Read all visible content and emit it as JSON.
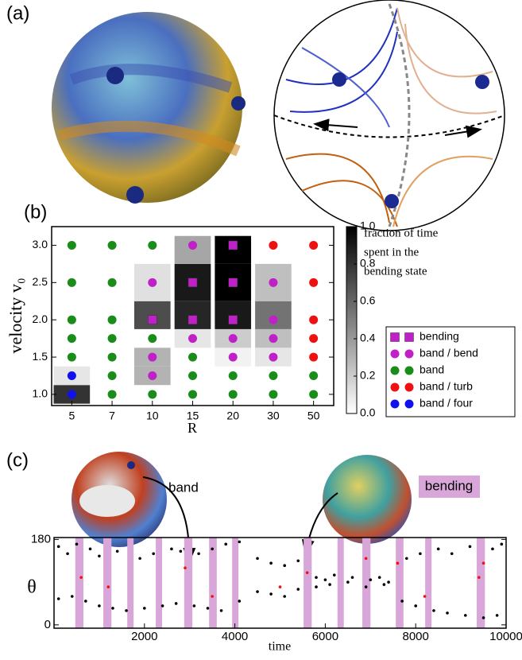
{
  "panel_labels": [
    "(a)",
    "(b)",
    "(c)"
  ],
  "chart_data": [
    {
      "type": "heatmap-scatter",
      "xlabel": "R",
      "ylabel": "velocity v₀",
      "categories": [
        5,
        7,
        10,
        15,
        20,
        30,
        50
      ],
      "ylim": [
        0.85,
        3.25
      ],
      "yticks": [
        {
          "value": 1,
          "label": "1.0"
        },
        1.5,
        {
          "value": 2,
          "label": "2.0"
        },
        2.5,
        {
          "value": 3,
          "label": "3.0"
        }
      ],
      "heatmap": {
        "x": [
          5,
          5,
          10,
          10,
          10,
          10,
          15,
          15,
          15,
          15,
          20,
          20,
          20,
          20,
          20,
          30,
          30,
          30,
          30
        ],
        "y": [
          1,
          1.25,
          1.25,
          1.5,
          2,
          2.5,
          1.75,
          2,
          2.5,
          3,
          1.5,
          1.75,
          2,
          2.5,
          3,
          1.5,
          1.75,
          2,
          2.5
        ],
        "values": [
          0.8,
          0.1,
          0.3,
          0.3,
          0.7,
          0.12,
          0.1,
          0.85,
          0.9,
          0.35,
          0.05,
          0.2,
          0.9,
          1,
          1,
          0.1,
          0.25,
          0.55,
          0.25
        ]
      },
      "colorbar": {
        "label": [
          "fraction of time",
          "spent in the",
          "bending state"
        ],
        "clim": [
          0,
          1
        ],
        "ticks": [
          {
            "value": 0,
            "label": "0.0"
          },
          0.2,
          0.4,
          0.6,
          0.8,
          {
            "value": 1,
            "label": "1.0"
          }
        ]
      },
      "series": [
        {
          "name": "bending",
          "color": "#c020c8",
          "marker": "square",
          "x": [
            10,
            15,
            15,
            20,
            20,
            20
          ],
          "values": [
            2,
            2,
            2.5,
            2,
            2.5,
            3
          ]
        },
        {
          "name": "band / bend",
          "color": "#c020c8",
          "marker": "circle",
          "x": [
            10,
            10,
            10,
            15,
            15,
            20,
            20,
            30,
            30,
            30,
            30
          ],
          "values": [
            1.25,
            1.5,
            2.5,
            1.75,
            3,
            1.5,
            1.75,
            1.5,
            1.75,
            2,
            2.5
          ]
        },
        {
          "name": "band",
          "color": "#1a8c1a",
          "marker": "circle",
          "x": [
            5,
            5,
            5,
            5,
            5,
            7,
            7,
            7,
            7,
            7,
            7,
            7,
            10,
            10,
            10,
            15,
            15,
            15,
            20,
            20,
            30,
            30,
            50,
            50
          ],
          "values": [
            1.5,
            1.75,
            2,
            2.5,
            3,
            1,
            1.25,
            1.5,
            1.75,
            2,
            2.5,
            3,
            1,
            1.75,
            3,
            1,
            1.25,
            1.5,
            1,
            1.25,
            1,
            1.25,
            1,
            1.25
          ]
        },
        {
          "name": "band / turb",
          "color": "#ee1111",
          "marker": "circle",
          "x": [
            30,
            50,
            50,
            50,
            50,
            50
          ],
          "values": [
            3,
            1.5,
            1.75,
            2,
            2.5,
            3
          ]
        },
        {
          "name": "band / four",
          "color": "#1111ee",
          "marker": "circle",
          "x": [
            5,
            5
          ],
          "values": [
            1,
            1.25
          ]
        }
      ]
    },
    {
      "type": "timeseries",
      "xlabel": "time",
      "ylabel": "θ",
      "xlim": [
        0,
        10000
      ],
      "xticks": [
        2000,
        4000,
        6000,
        8000,
        10000
      ],
      "ylim": [
        -7,
        184
      ],
      "yticks": [
        0,
        180
      ],
      "annotations": [
        "band",
        "bending"
      ],
      "bands": [
        [
          470,
          650
        ],
        [
          1090,
          1270
        ],
        [
          1620,
          1760
        ],
        [
          2250,
          2390
        ],
        [
          2880,
          3060
        ],
        [
          3430,
          3600
        ],
        [
          3940,
          4080
        ],
        [
          5520,
          5700
        ],
        [
          6270,
          6410
        ],
        [
          6820,
          7000
        ],
        [
          7560,
          7730
        ],
        [
          8210,
          8350
        ],
        [
          9350,
          9530
        ]
      ],
      "band_color": "#d9a6d9",
      "series": [
        {
          "color": "#000000",
          "x": [
            100,
            300,
            500,
            800,
            1000,
            1400,
            1900,
            2200,
            2600,
            2800,
            3200,
            3500,
            3800,
            4100,
            4500,
            4800,
            5100,
            5400,
            5800,
            6000,
            6200,
            6600,
            7000,
            7200,
            7400,
            7800,
            8100,
            8500,
            8800,
            9200,
            9700,
            9900,
            100,
            400,
            700,
            1000,
            1300,
            1600,
            2000,
            2400,
            2700,
            3100,
            3400,
            3700,
            4100,
            4500,
            4800,
            5100,
            5400,
            5800,
            6100,
            6500,
            6900,
            7300,
            7700,
            8000,
            8400,
            8700,
            9100,
            9500,
            9800
          ],
          "values": [
            165,
            150,
            170,
            160,
            145,
            155,
            140,
            150,
            160,
            155,
            150,
            160,
            170,
            175,
            140,
            130,
            125,
            135,
            100,
            95,
            105,
            100,
            95,
            100,
            90,
            140,
            150,
            160,
            150,
            165,
            160,
            170,
            55,
            60,
            50,
            40,
            35,
            30,
            35,
            40,
            45,
            40,
            35,
            30,
            50,
            70,
            65,
            60,
            75,
            80,
            85,
            90,
            80,
            85,
            50,
            40,
            30,
            25,
            20,
            15,
            20
          ]
        },
        {
          "color": "#ee1111",
          "x": [
            600,
            1200,
            2900,
            3500,
            5000,
            5600,
            6900,
            7600,
            8200,
            9400,
            9500
          ],
          "values": [
            100,
            80,
            120,
            60,
            80,
            110,
            140,
            130,
            60,
            100,
            130
          ]
        }
      ]
    }
  ]
}
